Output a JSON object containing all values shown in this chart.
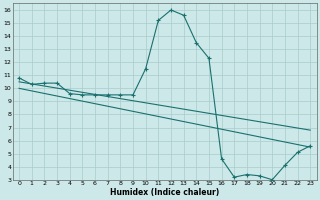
{
  "xlabel": "Humidex (Indice chaleur)",
  "bg_color": "#cce8e8",
  "grid_color": "#aacccc",
  "line_color": "#1a7070",
  "xlim": [
    -0.5,
    23.5
  ],
  "ylim": [
    3,
    16.5
  ],
  "xticks": [
    0,
    1,
    2,
    3,
    4,
    5,
    6,
    7,
    8,
    9,
    10,
    11,
    12,
    13,
    14,
    15,
    16,
    17,
    18,
    19,
    20,
    21,
    22,
    23
  ],
  "yticks": [
    3,
    4,
    5,
    6,
    7,
    8,
    9,
    10,
    11,
    12,
    13,
    14,
    15,
    16
  ],
  "line1_x": [
    0,
    1,
    2,
    3,
    4,
    5,
    6,
    7,
    8,
    9,
    10,
    11,
    12,
    13,
    14,
    15,
    16,
    17,
    18,
    19,
    20,
    21,
    22,
    23
  ],
  "line1_y": [
    10.8,
    10.3,
    10.4,
    10.4,
    9.6,
    9.5,
    9.5,
    9.5,
    9.5,
    9.5,
    11.5,
    15.2,
    16.0,
    15.6,
    13.5,
    12.3,
    4.6,
    3.2,
    3.4,
    3.3,
    3.0,
    4.1,
    5.1,
    5.6
  ],
  "line2_x": [
    0,
    23
  ],
  "line2_y": [
    10.5,
    6.8
  ],
  "line3_x": [
    0,
    23
  ],
  "line3_y": [
    10.0,
    5.5
  ]
}
